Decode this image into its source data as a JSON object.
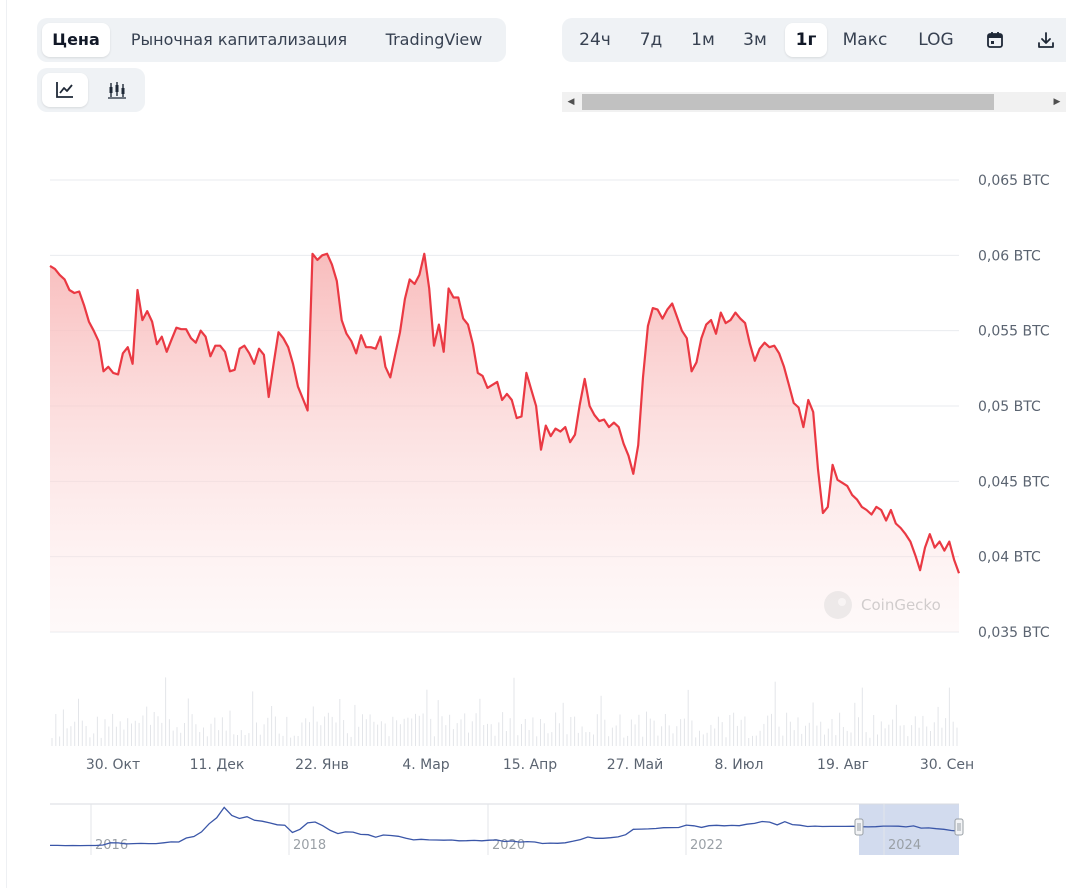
{
  "tabs": {
    "items": [
      {
        "label": "Цена",
        "active": true
      },
      {
        "label": "Рыночная капитализация",
        "active": false
      },
      {
        "label": "TradingView",
        "active": false
      }
    ]
  },
  "view_modes": [
    {
      "icon": "line-chart-icon",
      "active": true
    },
    {
      "icon": "candlestick-chart-icon",
      "active": false
    }
  ],
  "time_ranges": [
    {
      "label": "24ч",
      "active": false
    },
    {
      "label": "7д",
      "active": false
    },
    {
      "label": "1м",
      "active": false
    },
    {
      "label": "3м",
      "active": false
    },
    {
      "label": "1г",
      "active": true
    },
    {
      "label": "Макс",
      "active": false
    },
    {
      "label": "LOG",
      "active": false
    }
  ],
  "toolbar_icons": [
    "calendar-icon",
    "download-icon"
  ],
  "watermark": "CoinGecko",
  "colors": {
    "line": "#ea3943",
    "area_top": "#f8b9b9",
    "navigator_line": "#3a56a8",
    "navigator_selection": "#cdd7ec"
  },
  "chart_data": {
    "type": "area",
    "y_ticks": [
      "0,065 BTC",
      "0,06 BTC",
      "0,055 BTC",
      "0,05 BTC",
      "0,045 BTC",
      "0,04 BTC",
      "0,035 BTC"
    ],
    "ylim": [
      0.035,
      0.065
    ],
    "x_ticks": [
      "30. Окт",
      "11. Дек",
      "22. Янв",
      "4. Мар",
      "15. Апр",
      "27. Май",
      "8. Июл",
      "19. Авг",
      "30. Сен"
    ],
    "price_btc": [
      0.0593,
      0.0591,
      0.0587,
      0.0584,
      0.0577,
      0.0575,
      0.0576,
      0.0567,
      0.0556,
      0.055,
      0.0543,
      0.0523,
      0.0526,
      0.0522,
      0.0521,
      0.0535,
      0.0539,
      0.0528,
      0.0577,
      0.0557,
      0.0563,
      0.0556,
      0.0541,
      0.0546,
      0.0536,
      0.0544,
      0.0552,
      0.0551,
      0.0551,
      0.0545,
      0.0542,
      0.055,
      0.0546,
      0.0533,
      0.054,
      0.054,
      0.0536,
      0.0523,
      0.0524,
      0.0538,
      0.054,
      0.0535,
      0.0528,
      0.0538,
      0.0534,
      0.0506,
      0.0528,
      0.0549,
      0.0545,
      0.0539,
      0.0528,
      0.0513,
      0.0505,
      0.0497,
      0.0601,
      0.0597,
      0.06,
      0.0601,
      0.0594,
      0.0583,
      0.0557,
      0.0548,
      0.0543,
      0.0535,
      0.0547,
      0.0539,
      0.0539,
      0.0538,
      0.0546,
      0.0526,
      0.0519,
      0.0534,
      0.0549,
      0.0571,
      0.0584,
      0.0581,
      0.0587,
      0.0601,
      0.0578,
      0.054,
      0.0554,
      0.0536,
      0.0578,
      0.0572,
      0.0572,
      0.0558,
      0.0554,
      0.0541,
      0.0522,
      0.052,
      0.0512,
      0.0514,
      0.0516,
      0.0504,
      0.0508,
      0.0504,
      0.0492,
      0.0493,
      0.0522,
      0.0511,
      0.05,
      0.0471,
      0.0487,
      0.048,
      0.0485,
      0.0483,
      0.0486,
      0.0476,
      0.0481,
      0.0501,
      0.0518,
      0.05,
      0.0494,
      0.049,
      0.0491,
      0.0486,
      0.0489,
      0.0486,
      0.0475,
      0.0467,
      0.0455,
      0.0474,
      0.0519,
      0.0553,
      0.0565,
      0.0564,
      0.0558,
      0.0564,
      0.0568,
      0.0559,
      0.055,
      0.0545,
      0.0523,
      0.0529,
      0.0545,
      0.0554,
      0.0557,
      0.0548,
      0.0562,
      0.0555,
      0.0557,
      0.0562,
      0.0558,
      0.0555,
      0.0541,
      0.053,
      0.0538,
      0.0542,
      0.0539,
      0.054,
      0.0535,
      0.0526,
      0.0514,
      0.0502,
      0.0499,
      0.0486,
      0.0504,
      0.0496,
      0.0458,
      0.0429,
      0.0433,
      0.0461,
      0.0451,
      0.0449,
      0.0447,
      0.0441,
      0.0438,
      0.0433,
      0.0431,
      0.0428,
      0.0433,
      0.0431,
      0.0424,
      0.0431,
      0.0422,
      0.0419,
      0.0415,
      0.041,
      0.0401,
      0.0391,
      0.0406,
      0.0415,
      0.0406,
      0.041,
      0.0404,
      0.041,
      0.0398,
      0.0389
    ],
    "navigator": {
      "type": "line",
      "year_labels": [
        "2016",
        "2018",
        "2020",
        "2022",
        "2024"
      ],
      "values": [
        0.0178,
        0.0178,
        0.0175,
        0.0177,
        0.0176,
        0.0177,
        0.0177,
        0.0187,
        0.0228,
        0.0226,
        0.0206,
        0.0212,
        0.0216,
        0.0213,
        0.0212,
        0.0228,
        0.0244,
        0.0242,
        0.0316,
        0.0344,
        0.043,
        0.0581,
        0.0693,
        0.0886,
        0.0736,
        0.0679,
        0.0714,
        0.0646,
        0.0629,
        0.0598,
        0.0563,
        0.0556,
        0.0419,
        0.0479,
        0.0598,
        0.0614,
        0.0545,
        0.0458,
        0.0398,
        0.0431,
        0.0426,
        0.0383,
        0.0378,
        0.0331,
        0.0372,
        0.0363,
        0.0348,
        0.0313,
        0.0282,
        0.0293,
        0.0282,
        0.0279,
        0.0276,
        0.028,
        0.0264,
        0.0266,
        0.0272,
        0.0264,
        0.0276,
        0.0279,
        0.0252,
        0.0261,
        0.0241,
        0.0249,
        0.0242,
        0.0215,
        0.0222,
        0.0218,
        0.0227,
        0.0256,
        0.0287,
        0.0335,
        0.0312,
        0.0312,
        0.0323,
        0.0337,
        0.0379,
        0.0479,
        0.0483,
        0.0486,
        0.0494,
        0.0508,
        0.0511,
        0.0513,
        0.0557,
        0.0544,
        0.0514,
        0.0545,
        0.0553,
        0.0544,
        0.0551,
        0.0546,
        0.0573,
        0.0589,
        0.0624,
        0.0613,
        0.0561,
        0.0621,
        0.0566,
        0.0556,
        0.053,
        0.0539,
        0.0531,
        0.0532,
        0.0533,
        0.0533,
        0.0535,
        0.0528,
        0.0523,
        0.0528,
        0.0538,
        0.0538,
        0.0536,
        0.0523,
        0.0542,
        0.0501,
        0.0505,
        0.049,
        0.0479,
        0.0456,
        0.0446
      ]
    }
  }
}
